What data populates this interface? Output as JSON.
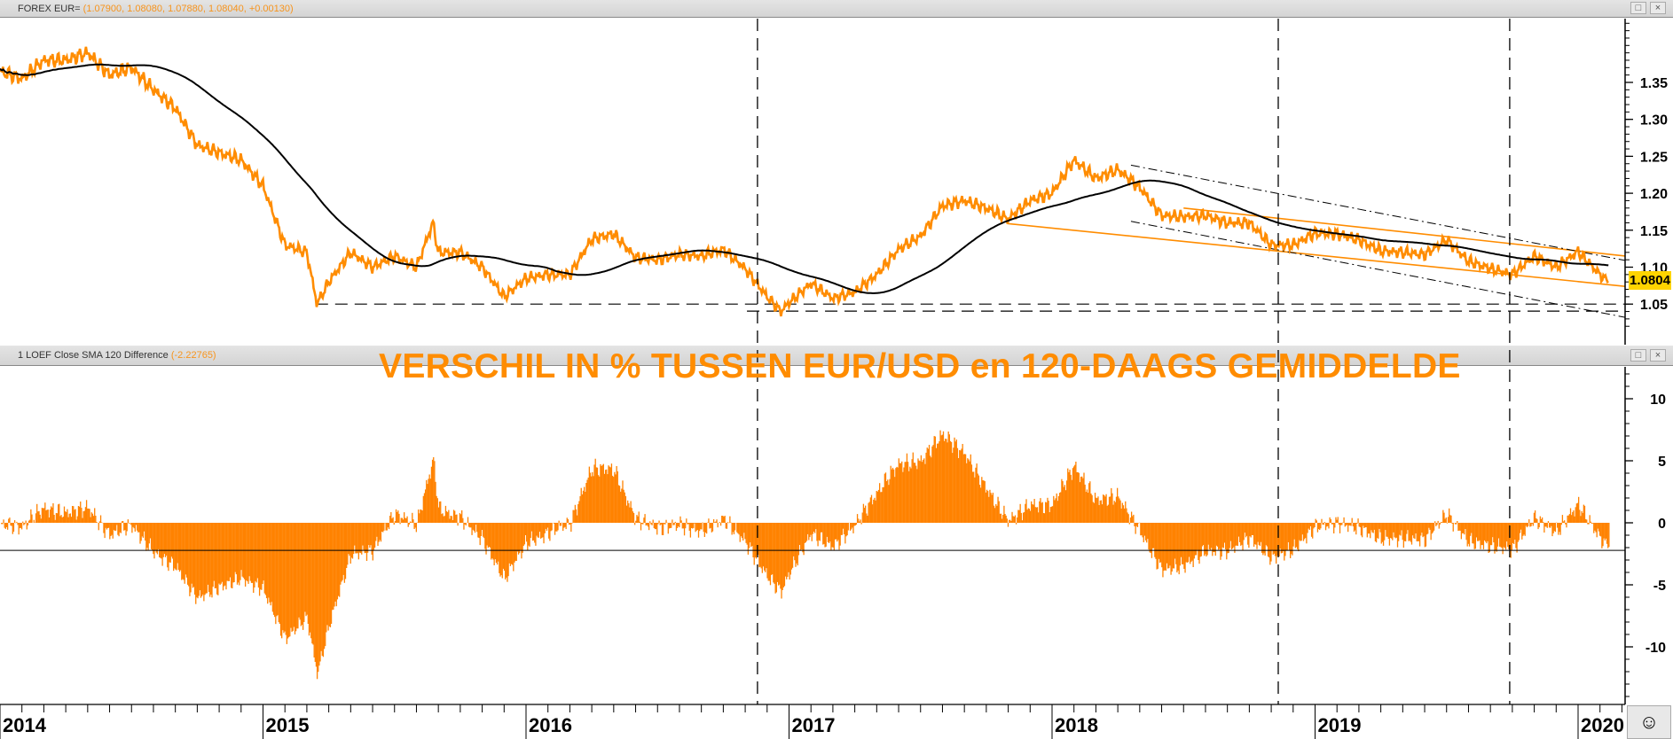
{
  "panels": {
    "price": {
      "label": "FOREX EUR=",
      "values_text": "(1.07900, 1.08080, 1.07880, 1.08040, +0.00130)",
      "last_value": "1.0804"
    },
    "indicator": {
      "label": "1 LOEF Close SMA 120 Difference",
      "values_text": "(-2.22765)",
      "annotation": "VERSCHIL IN % TUSSEN EUR/USD en 120-DAAGS GEMIDDELDE"
    },
    "buttons": {
      "restore": "□",
      "close": "×"
    },
    "status_icon": "neutral-face-icon",
    "status_glyph": "☺"
  },
  "colors": {
    "price": "#ff8c00",
    "sma": "#000000",
    "histogram": "#ff8200",
    "last_box": "#ffd400"
  },
  "chart_data": [
    {
      "type": "line",
      "title": "FOREX EUR=",
      "ylim": [
        1.02,
        1.43
      ],
      "yticks": [
        "1.05",
        "1.10",
        "1.15",
        "1.20",
        "1.25",
        "1.30",
        "1.35"
      ],
      "xticks": [
        "2014",
        "2015",
        "2016",
        "2017",
        "2018",
        "2019",
        "2020"
      ],
      "sma_period": 120,
      "series": [
        {
          "name": "EUR/USD close",
          "points": [
            [
              "2014-01-01",
              1.365
            ],
            [
              "2014-02-01",
              1.355
            ],
            [
              "2014-03-01",
              1.38
            ],
            [
              "2014-04-01",
              1.38
            ],
            [
              "2014-05-01",
              1.39
            ],
            [
              "2014-06-01",
              1.36
            ],
            [
              "2014-07-01",
              1.37
            ],
            [
              "2014-08-01",
              1.34
            ],
            [
              "2014-09-01",
              1.315
            ],
            [
              "2014-10-01",
              1.265
            ],
            [
              "2014-11-01",
              1.255
            ],
            [
              "2014-12-01",
              1.245
            ],
            [
              "2015-01-01",
              1.21
            ],
            [
              "2015-02-01",
              1.13
            ],
            [
              "2015-03-01",
              1.12
            ],
            [
              "2015-03-15",
              1.05
            ],
            [
              "2015-04-01",
              1.08
            ],
            [
              "2015-05-01",
              1.12
            ],
            [
              "2015-06-01",
              1.1
            ],
            [
              "2015-07-01",
              1.115
            ],
            [
              "2015-08-01",
              1.1
            ],
            [
              "2015-08-24",
              1.16
            ],
            [
              "2015-09-01",
              1.12
            ],
            [
              "2015-10-01",
              1.12
            ],
            [
              "2015-11-01",
              1.1
            ],
            [
              "2015-12-01",
              1.06
            ],
            [
              "2016-01-01",
              1.085
            ],
            [
              "2016-02-01",
              1.09
            ],
            [
              "2016-03-01",
              1.09
            ],
            [
              "2016-04-01",
              1.138
            ],
            [
              "2016-05-01",
              1.145
            ],
            [
              "2016-06-01",
              1.113
            ],
            [
              "2016-07-01",
              1.11
            ],
            [
              "2016-08-01",
              1.117
            ],
            [
              "2016-09-01",
              1.115
            ],
            [
              "2016-10-01",
              1.124
            ],
            [
              "2016-11-01",
              1.098
            ],
            [
              "2016-12-01",
              1.06
            ],
            [
              "2016-12-20",
              1.04
            ],
            [
              "2017-01-01",
              1.052
            ],
            [
              "2017-02-01",
              1.078
            ],
            [
              "2017-03-01",
              1.058
            ],
            [
              "2017-04-01",
              1.066
            ],
            [
              "2017-05-01",
              1.09
            ],
            [
              "2017-06-01",
              1.124
            ],
            [
              "2017-07-01",
              1.142
            ],
            [
              "2017-08-01",
              1.183
            ],
            [
              "2017-09-01",
              1.19
            ],
            [
              "2017-10-01",
              1.18
            ],
            [
              "2017-11-01",
              1.165
            ],
            [
              "2017-12-01",
              1.19
            ],
            [
              "2018-01-01",
              1.2
            ],
            [
              "2018-02-01",
              1.245
            ],
            [
              "2018-03-01",
              1.22
            ],
            [
              "2018-04-01",
              1.232
            ],
            [
              "2018-05-01",
              1.208
            ],
            [
              "2018-06-01",
              1.17
            ],
            [
              "2018-07-01",
              1.168
            ],
            [
              "2018-08-01",
              1.17
            ],
            [
              "2018-09-01",
              1.16
            ],
            [
              "2018-10-01",
              1.16
            ],
            [
              "2018-11-01",
              1.13
            ],
            [
              "2018-12-01",
              1.13
            ],
            [
              "2019-01-01",
              1.146
            ],
            [
              "2019-02-01",
              1.145
            ],
            [
              "2019-03-01",
              1.137
            ],
            [
              "2019-04-01",
              1.122
            ],
            [
              "2019-05-01",
              1.12
            ],
            [
              "2019-06-01",
              1.117
            ],
            [
              "2019-07-01",
              1.137
            ],
            [
              "2019-08-01",
              1.108
            ],
            [
              "2019-09-01",
              1.098
            ],
            [
              "2019-10-01",
              1.09
            ],
            [
              "2019-11-01",
              1.115
            ],
            [
              "2019-12-01",
              1.1
            ],
            [
              "2020-01-01",
              1.121
            ],
            [
              "2020-02-01",
              1.09
            ],
            [
              "2020-02-14",
              1.0804
            ]
          ]
        }
      ],
      "trendlines": [
        {
          "name": "channel-upper",
          "style": "orange",
          "from": [
            2018.5,
            1.18
          ],
          "to": [
            2020.18,
            1.115
          ]
        },
        {
          "name": "channel-lower",
          "style": "orange",
          "from": [
            2017.83,
            1.159
          ],
          "to": [
            2020.18,
            1.074
          ]
        },
        {
          "name": "dashdot-upper",
          "style": "dashdot",
          "from": [
            2018.3,
            1.238
          ],
          "to": [
            2020.18,
            1.109
          ]
        },
        {
          "name": "dashdot-lower",
          "style": "dashdot",
          "from": [
            2018.3,
            1.162
          ],
          "to": [
            2020.18,
            1.032
          ]
        },
        {
          "name": "support-1",
          "style": "dashed",
          "from": [
            2015.2,
            1.05
          ],
          "to": [
            2020.18,
            1.05
          ]
        },
        {
          "name": "support-2",
          "style": "dashed",
          "from": [
            2016.84,
            1.0405
          ],
          "to": [
            2020.18,
            1.0405
          ]
        }
      ],
      "vertical_markers": [
        2016.88,
        2018.86,
        2019.74
      ]
    },
    {
      "type": "bar",
      "title": "1 LOEF Close SMA 120 Difference",
      "ylim": [
        -14,
        13
      ],
      "yticks": [
        "10",
        "5",
        "0",
        "-5",
        "-10"
      ],
      "reference_line": -2.22765,
      "derived_from": "EUR/USD close vs SMA 120, percent"
    }
  ]
}
